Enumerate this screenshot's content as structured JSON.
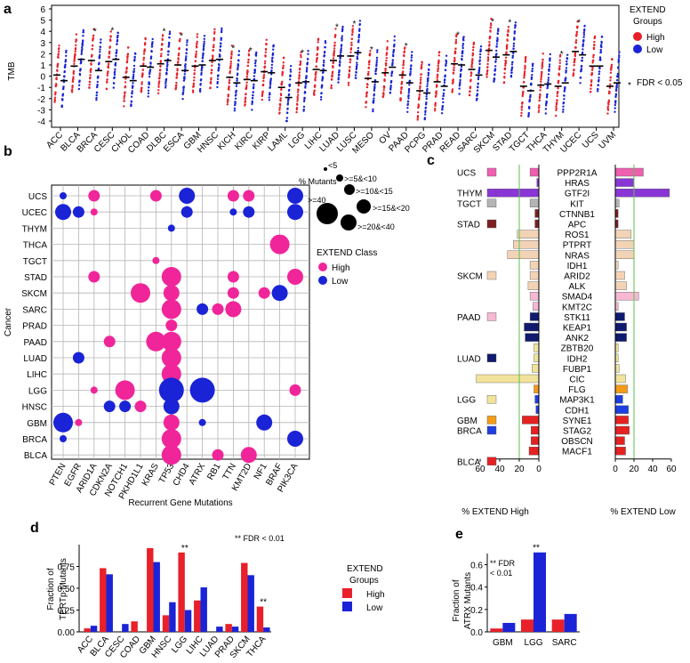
{
  "panels": {
    "a": "a",
    "b": "b",
    "c": "c",
    "d": "d",
    "e": "e"
  },
  "chart_data": [
    {
      "id": "panel-a",
      "type": "scatter",
      "ylabel": "TMB",
      "ylim": [
        -4,
        6
      ],
      "yticks": [
        "6",
        "5",
        "4",
        "3",
        "2",
        "1",
        "0",
        "-1",
        "-2",
        "-3",
        "-4"
      ],
      "categories": [
        "ACC",
        "BLCA",
        "BRCA",
        "CESC",
        "CHOL",
        "COAD",
        "DLBC",
        "ESCA",
        "GBM",
        "HNSC",
        "KICH",
        "KIRC",
        "KIRP",
        "LAML",
        "LGG",
        "LIHC",
        "LUAD",
        "LUSC",
        "MESO",
        "OV",
        "PAAD",
        "PCPG",
        "PRAD",
        "READ",
        "SARC",
        "SKCM",
        "STAD",
        "TGCT",
        "THCA",
        "THYM",
        "UCEC",
        "UCS",
        "UVM"
      ],
      "series": [
        {
          "name": "High",
          "color": "#e8202a",
          "medians": [
            0.1,
            0.9,
            1.4,
            1.3,
            -0.1,
            0.9,
            1.1,
            1.0,
            0.9,
            1.4,
            -0.1,
            -0.3,
            0.4,
            -1.0,
            -0.6,
            0.6,
            1.4,
            1.8,
            -0.2,
            0.3,
            0.1,
            -1.3,
            -0.5,
            1.1,
            0.6,
            2.3,
            1.9,
            -0.9,
            -0.8,
            -0.9,
            2.2,
            0.9,
            -0.9
          ]
        },
        {
          "name": "Low",
          "color": "#1a23d6",
          "medians": [
            -0.4,
            1.5,
            0.5,
            1.5,
            -0.4,
            0.8,
            1.4,
            0.5,
            1.0,
            1.5,
            -0.6,
            -0.4,
            0.3,
            -1.9,
            -0.5,
            0.5,
            1.8,
            2.1,
            -0.5,
            0.8,
            -0.6,
            -1.5,
            -0.9,
            1.0,
            0.1,
            1.7,
            2.2,
            -1.3,
            -0.7,
            -0.6,
            1.9,
            0.9,
            -0.6
          ]
        }
      ],
      "significant": [
        "BRCA",
        "CESC",
        "DLBC",
        "ESCA",
        "KICH",
        "KIRC",
        "LGG",
        "LUAD",
        "LUSC",
        "MESO",
        "PAAD",
        "READ",
        "SKCM",
        "STAD",
        "THYM",
        "UCEC"
      ],
      "legend_title": "EXTEND Groups",
      "legend_items": [
        "High",
        "Low"
      ],
      "footnote": "FDR < 0.05"
    },
    {
      "id": "panel-b",
      "type": "scatter",
      "xlabel": "Recurrent Gene Mutations",
      "ylabel": "Cancer",
      "genes": [
        "PTEN",
        "EGFR",
        "ARID1A",
        "CDKN2A",
        "NOTCH1",
        "PKHD1L1",
        "KRAS",
        "TP53",
        "CHD4",
        "ATRX",
        "RB1",
        "TTN",
        "KMT2D",
        "NF1",
        "BRAF",
        "PIK3CA"
      ],
      "cancers": [
        "UCS",
        "UCEC",
        "THYM",
        "THCA",
        "TGCT",
        "STAD",
        "SKCM",
        "SARC",
        "PRAD",
        "PAAD",
        "LUAD",
        "LIHC",
        "LGG",
        "HNSC",
        "GBM",
        "BRCA",
        "BLCA"
      ],
      "size_legend_title": "% Mutants",
      "size_legend": [
        "<5",
        ">=5&<10",
        ">=10&<15",
        ">=15&<20",
        ">=20&<40",
        ">=40"
      ],
      "class_legend_title": "EXTEND Class",
      "class_legend": [
        "High",
        "Low"
      ],
      "points": [
        {
          "cancer": "UCS",
          "gene": "PTEN",
          "cls": "Low",
          "size": 1
        },
        {
          "cancer": "UCS",
          "gene": "ARID1A",
          "cls": "High",
          "size": 2
        },
        {
          "cancer": "UCS",
          "gene": "KRAS",
          "cls": "High",
          "size": 2
        },
        {
          "cancer": "UCS",
          "gene": "CHD4",
          "cls": "Low",
          "size": 3
        },
        {
          "cancer": "UCS",
          "gene": "TTN",
          "cls": "High",
          "size": 2
        },
        {
          "cancer": "UCS",
          "gene": "KMT2D",
          "cls": "High",
          "size": 2
        },
        {
          "cancer": "UCS",
          "gene": "PIK3CA",
          "cls": "Low",
          "size": 3
        },
        {
          "cancer": "UCEC",
          "gene": "PTEN",
          "cls": "Low",
          "size": 3
        },
        {
          "cancer": "UCEC",
          "gene": "EGFR",
          "cls": "Low",
          "size": 2
        },
        {
          "cancer": "UCEC",
          "gene": "ARID1A",
          "cls": "High",
          "size": 1
        },
        {
          "cancer": "UCEC",
          "gene": "CHD4",
          "cls": "Low",
          "size": 2
        },
        {
          "cancer": "UCEC",
          "gene": "TTN",
          "cls": "Low",
          "size": 1
        },
        {
          "cancer": "UCEC",
          "gene": "KMT2D",
          "cls": "Low",
          "size": 2
        },
        {
          "cancer": "UCEC",
          "gene": "PIK3CA",
          "cls": "Low",
          "size": 3
        },
        {
          "cancer": "THYM",
          "gene": "TP53",
          "cls": "Low",
          "size": 1
        },
        {
          "cancer": "THCA",
          "gene": "BRAF",
          "cls": "High",
          "size": 4
        },
        {
          "cancer": "TGCT",
          "gene": "KRAS",
          "cls": "High",
          "size": 1
        },
        {
          "cancer": "STAD",
          "gene": "ARID1A",
          "cls": "High",
          "size": 2
        },
        {
          "cancer": "STAD",
          "gene": "TP53",
          "cls": "High",
          "size": 4
        },
        {
          "cancer": "STAD",
          "gene": "TTN",
          "cls": "High",
          "size": 2
        },
        {
          "cancer": "STAD",
          "gene": "PIK3CA",
          "cls": "High",
          "size": 3
        },
        {
          "cancer": "SKCM",
          "gene": "PKHD1L1",
          "cls": "High",
          "size": 4
        },
        {
          "cancer": "SKCM",
          "gene": "TP53",
          "cls": "High",
          "size": 3
        },
        {
          "cancer": "SKCM",
          "gene": "TTN",
          "cls": "High",
          "size": 2
        },
        {
          "cancer": "SKCM",
          "gene": "NF1",
          "cls": "High",
          "size": 2
        },
        {
          "cancer": "SKCM",
          "gene": "BRAF",
          "cls": "Low",
          "size": 3
        },
        {
          "cancer": "SARC",
          "gene": "TP53",
          "cls": "High",
          "size": 4
        },
        {
          "cancer": "SARC",
          "gene": "ATRX",
          "cls": "Low",
          "size": 2
        },
        {
          "cancer": "SARC",
          "gene": "RB1",
          "cls": "High",
          "size": 2
        },
        {
          "cancer": "SARC",
          "gene": "TTN",
          "cls": "High",
          "size": 3
        },
        {
          "cancer": "PRAD",
          "gene": "TP53",
          "cls": "High",
          "size": 2
        },
        {
          "cancer": "PAAD",
          "gene": "CDKN2A",
          "cls": "High",
          "size": 2
        },
        {
          "cancer": "PAAD",
          "gene": "KRAS",
          "cls": "High",
          "size": 4
        },
        {
          "cancer": "PAAD",
          "gene": "TP53",
          "cls": "High",
          "size": 4
        },
        {
          "cancer": "LUAD",
          "gene": "EGFR",
          "cls": "Low",
          "size": 2
        },
        {
          "cancer": "LUAD",
          "gene": "TP53",
          "cls": "High",
          "size": 4
        },
        {
          "cancer": "LIHC",
          "gene": "TP53",
          "cls": "High",
          "size": 4
        },
        {
          "cancer": "LGG",
          "gene": "ARID1A",
          "cls": "High",
          "size": 1
        },
        {
          "cancer": "LGG",
          "gene": "NOTCH1",
          "cls": "High",
          "size": 4
        },
        {
          "cancer": "LGG",
          "gene": "TP53",
          "cls": "Low",
          "size": 5
        },
        {
          "cancer": "LGG",
          "gene": "ATRX",
          "cls": "Low",
          "size": 5
        },
        {
          "cancer": "LGG",
          "gene": "PIK3CA",
          "cls": "High",
          "size": 2
        },
        {
          "cancer": "HNSC",
          "gene": "CDKN2A",
          "cls": "Low",
          "size": 2
        },
        {
          "cancer": "HNSC",
          "gene": "NOTCH1",
          "cls": "Low",
          "size": 2
        },
        {
          "cancer": "HNSC",
          "gene": "PKHD1L1",
          "cls": "High",
          "size": 2
        },
        {
          "cancer": "HNSC",
          "gene": "TP53",
          "cls": "Low",
          "size": 3
        },
        {
          "cancer": "GBM",
          "gene": "PTEN",
          "cls": "Low",
          "size": 4
        },
        {
          "cancer": "GBM",
          "gene": "EGFR",
          "cls": "High",
          "size": 1
        },
        {
          "cancer": "GBM",
          "gene": "TP53",
          "cls": "High",
          "size": 3
        },
        {
          "cancer": "GBM",
          "gene": "ATRX",
          "cls": "Low",
          "size": 1
        },
        {
          "cancer": "GBM",
          "gene": "NF1",
          "cls": "Low",
          "size": 3
        },
        {
          "cancer": "BRCA",
          "gene": "PTEN",
          "cls": "Low",
          "size": 1
        },
        {
          "cancer": "BRCA",
          "gene": "TP53",
          "cls": "High",
          "size": 4
        },
        {
          "cancer": "BRCA",
          "gene": "PIK3CA",
          "cls": "Low",
          "size": 3
        },
        {
          "cancer": "BLCA",
          "gene": "TP53",
          "cls": "High",
          "size": 4
        },
        {
          "cancer": "BLCA",
          "gene": "RB1",
          "cls": "High",
          "size": 2
        },
        {
          "cancer": "BLCA",
          "gene": "KMT2D",
          "cls": "High",
          "size": 3
        }
      ]
    },
    {
      "id": "panel-c",
      "type": "bar",
      "xlabel_left": "% EXTEND High",
      "xlabel_right": "% EXTEND Low",
      "xticks_left": [
        "60",
        "40",
        "20",
        "0"
      ],
      "xticks_right": [
        "0",
        "20",
        "40",
        "60"
      ],
      "xlim": [
        0,
        60
      ],
      "ref_line": 20,
      "cancer_labels": [
        {
          "label": "UCS",
          "color": "#ee5fb0",
          "row": 0
        },
        {
          "label": "THYM",
          "color": "#8a35d6",
          "row": 2
        },
        {
          "label": "TGCT",
          "color": "#b4b4b4",
          "row": 3
        },
        {
          "label": "STAD",
          "color": "#7b2020",
          "row": 5
        },
        {
          "label": "SKCM",
          "color": "#f3d3b6",
          "row": 10
        },
        {
          "label": "PAAD",
          "color": "#f6b8d2",
          "row": 14
        },
        {
          "label": "LUAD",
          "color": "#101a6e",
          "row": 18
        },
        {
          "label": "LGG",
          "color": "#f1e39c",
          "row": 22
        },
        {
          "label": "GBM",
          "color": "#f39b18",
          "row": 24
        },
        {
          "label": "BRCA",
          "color": "#1e3fe0",
          "row": 25
        },
        {
          "label": "BLCA",
          "color": "#e42222",
          "row": 28
        }
      ],
      "genes": [
        "PPP2R1A",
        "HRAS",
        "GTF2I",
        "KIT",
        "CTNNB1",
        "APC",
        "ROS1",
        "PTPRT",
        "NRAS",
        "IDH1",
        "ARID2",
        "ALK",
        "SMAD4",
        "KMT2C",
        "STK11",
        "KEAP1",
        "ANK2",
        "ZBTB20",
        "IDH2",
        "FUBP1",
        "CIC",
        "FLG",
        "MAP3K1",
        "CDH1",
        "SYNE1",
        "STAG2",
        "OBSCN",
        "MACF1"
      ],
      "bar_colors": [
        "#ee5fb0",
        "#8a35d6",
        "#8a35d6",
        "#b4b4b4",
        "#7b2020",
        "#7b2020",
        "#f3d3b6",
        "#f3d3b6",
        "#f3d3b6",
        "#f3d3b6",
        "#f3d3b6",
        "#f3d3b6",
        "#f6b8d2",
        "#f6b8d2",
        "#101a6e",
        "#101a6e",
        "#101a6e",
        "#f1e39c",
        "#f1e39c",
        "#f1e39c",
        "#f1e39c",
        "#f39b18",
        "#1e3fe0",
        "#1e3fe0",
        "#e42222",
        "#e42222",
        "#e42222",
        "#e42222"
      ],
      "series": [
        {
          "name": "% EXTEND High",
          "values": [
            9,
            2,
            44,
            9,
            4,
            4,
            22,
            26,
            32,
            9,
            9,
            11,
            9,
            6,
            9,
            15,
            14,
            5,
            5,
            7,
            64,
            5,
            4,
            3,
            17,
            8,
            8,
            10
          ]
        },
        {
          "name": "% EXTEND Low",
          "values": [
            30,
            20,
            58,
            4,
            3,
            3,
            17,
            20,
            20,
            3,
            10,
            12,
            25,
            3,
            10,
            12,
            12,
            3,
            3,
            4,
            11,
            13,
            8,
            14,
            14,
            15,
            10,
            11
          ]
        }
      ]
    },
    {
      "id": "panel-d",
      "type": "bar",
      "ylabel": "Fraction of TERTp Mutants",
      "ylim": [
        0,
        1.0
      ],
      "yticks": [
        "0.75",
        "0.50",
        "0.25",
        "0.00"
      ],
      "categories": [
        "ACC",
        "BLCA",
        "CESC",
        "COAD",
        "GBM",
        "HNSC",
        "LGG",
        "LIHC",
        "LUAD",
        "PRAD",
        "SKCM",
        "THCA"
      ],
      "series": [
        {
          "name": "High",
          "color": "#e8202a",
          "values": [
            0.04,
            0.73,
            0.0,
            0.12,
            0.96,
            0.19,
            0.91,
            0.36,
            0.0,
            0.09,
            0.79,
            0.29
          ]
        },
        {
          "name": "Low",
          "color": "#1a23d6",
          "values": [
            0.07,
            0.66,
            0.09,
            0.0,
            0.8,
            0.34,
            0.25,
            0.51,
            0.06,
            0.06,
            0.65,
            0.05
          ]
        }
      ],
      "significant": [
        "LGG",
        "THCA"
      ],
      "sig_mark": "**",
      "footnote": "** FDR < 0.01",
      "legend_title": "EXTEND Groups",
      "legend_items": [
        "High",
        "Low"
      ]
    },
    {
      "id": "panel-e",
      "type": "bar",
      "ylabel": "Fraction of ATRX Mutants",
      "ylim": [
        0,
        0.7
      ],
      "yticks": [
        "0.6",
        "0.4",
        "0.2",
        "0.0"
      ],
      "categories": [
        "GBM",
        "LGG",
        "SARC"
      ],
      "series": [
        {
          "name": "High",
          "color": "#e8202a",
          "values": [
            0.03,
            0.11,
            0.11
          ]
        },
        {
          "name": "Low",
          "color": "#1a23d6",
          "values": [
            0.08,
            0.71,
            0.16
          ]
        }
      ],
      "significant": [
        "LGG"
      ],
      "sig_mark": "**",
      "footnote": "** FDR < 0.01"
    }
  ]
}
